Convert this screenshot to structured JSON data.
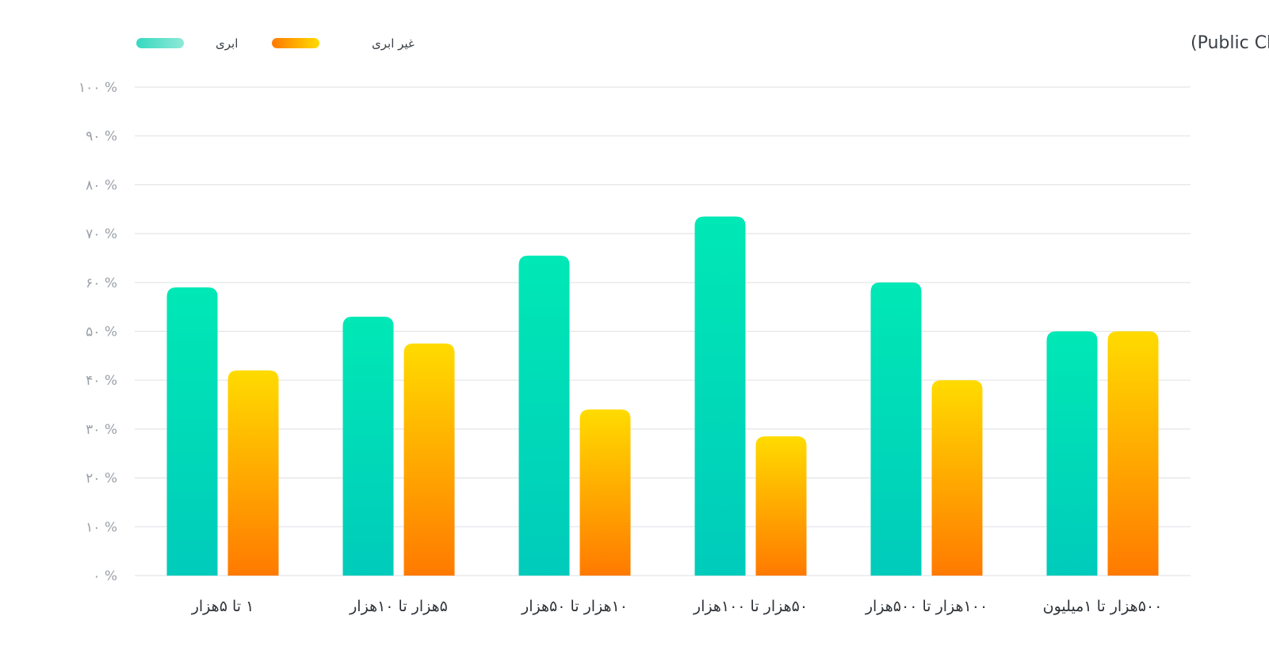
{
  "chart_data": {
    "type": "bar",
    "title": "استفاده‌ی وب‌سایت‌های ایرانی با رتبه‌ی جهانی زیر یک میلیون از CDN و DNS ابر عمومی (Public Cloud)",
    "categories": [
      "۱ تا ۵هزار",
      "۵هزار تا ۱۰هزار",
      "۱۰هزار تا ۵۰هزار",
      "۵۰هزار تا ۱۰۰هزار",
      "۱۰۰هزار تا ۵۰۰هزار",
      "۵۰۰هزار تا ۱میلیون"
    ],
    "series": [
      {
        "name": "ابری",
        "values": [
          59,
          53,
          65.5,
          73.5,
          60,
          50
        ],
        "color_top": "#00e8b5",
        "color_bottom": "#00cbbb"
      },
      {
        "name": "غیر ابری",
        "values": [
          42,
          47.5,
          34,
          28.5,
          40,
          50
        ],
        "color_top": "#ffdb00",
        "color_bottom": "#ff7a00"
      }
    ],
    "ylim": [
      0,
      100
    ],
    "yticks": [
      "۰ %",
      "۱۰ %",
      "۲۰ %",
      "۳۰ %",
      "۴۰ %",
      "۵۰ %",
      "۶۰ %",
      "۷۰ %",
      "۸۰ %",
      "۹۰ %",
      "۱۰۰ %"
    ],
    "grid": true,
    "legend": "top-left"
  }
}
